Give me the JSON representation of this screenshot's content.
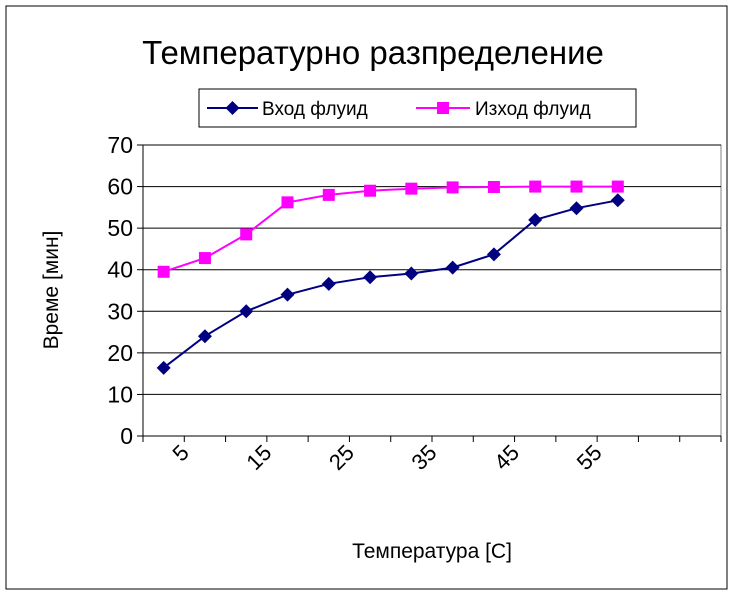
{
  "chart_data": {
    "type": "line",
    "title": "Температурно разпределение",
    "xlabel": "Температура [C]",
    "ylabel": "Време [мин]",
    "x_tick_labels": [
      "5",
      "15",
      "25",
      "35",
      "45",
      "55"
    ],
    "x_categories": [
      "7.5",
      "12.5",
      "17.5",
      "22.5",
      "27.5",
      "32.5",
      "37.5",
      "42.5",
      "47.5",
      "52.5",
      "57.5",
      "62.5"
    ],
    "ylim": [
      0,
      70
    ],
    "y_ticks": [
      0,
      10,
      20,
      30,
      40,
      50,
      60,
      70
    ],
    "grid": "horizontal major gridlines",
    "legend_position": "top",
    "series": [
      {
        "name": "Вход флуид",
        "color": "#000080",
        "marker": "diamond",
        "values": [
          16.4,
          24,
          30,
          34,
          36.6,
          38.2,
          39.1,
          40.5,
          43.7,
          52,
          54.8,
          56.7
        ]
      },
      {
        "name": "Изход флуид",
        "color": "#FF00FF",
        "marker": "square",
        "values": [
          39.5,
          42.8,
          48.5,
          56.2,
          58,
          59,
          59.5,
          59.8,
          59.9,
          60,
          60,
          60
        ]
      }
    ]
  }
}
